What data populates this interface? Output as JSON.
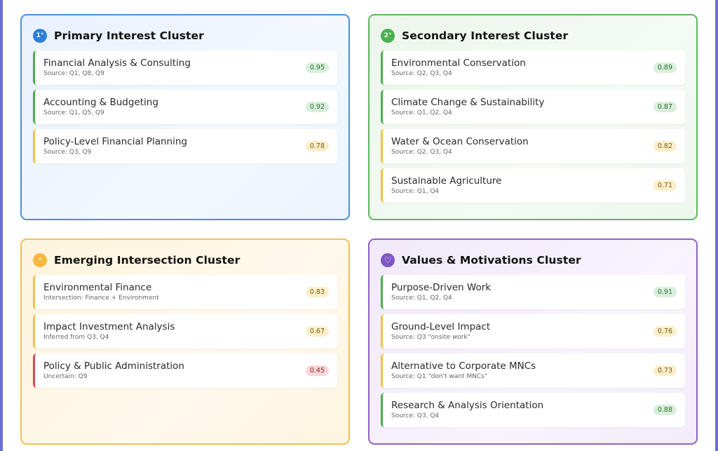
{
  "clusters": [
    {
      "badge": "1°",
      "title": "Primary Interest Cluster",
      "items": [
        {
          "title": "Financial Analysis & Consulting",
          "source": "Source: Q1, Q8, Q9",
          "score": "0.95",
          "level": "green"
        },
        {
          "title": "Accounting & Budgeting",
          "source": "Source: Q1, Q5, Q9",
          "score": "0.92",
          "level": "green"
        },
        {
          "title": "Policy-Level Financial Planning",
          "source": "Source: Q3, Q9",
          "score": "0.78",
          "level": "yellow"
        }
      ]
    },
    {
      "badge": "2°",
      "title": "Secondary Interest Cluster",
      "items": [
        {
          "title": "Environmental Conservation",
          "source": "Source: Q2, Q3, Q4",
          "score": "0.89",
          "level": "green"
        },
        {
          "title": "Climate Change & Sustainability",
          "source": "Source: Q1, Q2, Q4",
          "score": "0.87",
          "level": "green"
        },
        {
          "title": "Water & Ocean Conservation",
          "source": "Source: Q2, Q3, Q4",
          "score": "0.82",
          "level": "yellow"
        },
        {
          "title": "Sustainable Agriculture",
          "source": "Source: Q1, Q4",
          "score": "0.71",
          "level": "yellow"
        }
      ]
    },
    {
      "badge": "⚡",
      "title": "Emerging Intersection Cluster",
      "items": [
        {
          "title": "Environmental Finance",
          "source": "Intersection: Finance + Environment",
          "score": "0.83",
          "level": "yellow"
        },
        {
          "title": "Impact Investment Analysis",
          "source": "Inferred from Q3, Q4",
          "score": "0.67",
          "level": "yellow"
        },
        {
          "title": "Policy & Public Administration",
          "source": "Uncertain: Q9",
          "score": "0.45",
          "level": "red"
        }
      ]
    },
    {
      "badge": "♡",
      "title": "Values & Motivations Cluster",
      "items": [
        {
          "title": "Purpose-Driven Work",
          "source": "Source: Q1, Q2, Q4",
          "score": "0.91",
          "level": "green"
        },
        {
          "title": "Ground-Level Impact",
          "source": "Source: Q3 \"onsite work\"",
          "score": "0.76",
          "level": "yellow"
        },
        {
          "title": "Alternative to Corporate MNCs",
          "source": "Source: Q1 \"don't want MNCs\"",
          "score": "0.73",
          "level": "yellow"
        },
        {
          "title": "Research & Analysis Orientation",
          "source": "Source: Q3, Q4",
          "score": "0.88",
          "level": "green"
        }
      ]
    }
  ],
  "theme": {
    "primary": "#2f7fd8",
    "secondary": "#4caf50",
    "emerging": "#f2c14e",
    "values": "#7e57c2"
  }
}
